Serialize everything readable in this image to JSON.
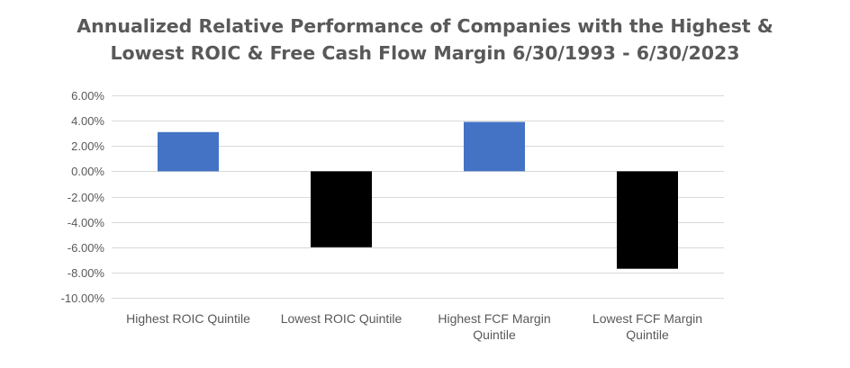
{
  "chart_data": {
    "type": "bar",
    "title_lines": [
      "Annualized Relative Performance of Companies with the Highest &",
      "Lowest ROIC & Free Cash Flow Margin 6/30/1993 - 6/30/2023"
    ],
    "categories": [
      [
        "Highest ROIC Quintile"
      ],
      [
        "Lowest ROIC Quintile"
      ],
      [
        "Highest FCF Margin",
        "Quintile"
      ],
      [
        "Lowest FCF Margin",
        "Quintile"
      ]
    ],
    "values": [
      3.1,
      -6.0,
      3.9,
      -7.7
    ],
    "value_format": "percent_2dp",
    "ylim": [
      -10,
      6
    ],
    "yticks": [
      6,
      4,
      2,
      0,
      -2,
      -4,
      -6,
      -8,
      -10
    ],
    "ytick_labels": [
      "6.00%",
      "4.00%",
      "2.00%",
      "0.00%",
      "-2.00%",
      "-4.00%",
      "-6.00%",
      "-8.00%",
      "-10.00%"
    ],
    "grid": true,
    "legend": "none",
    "colors": {
      "positive": "#4472C4",
      "negative": "#000000",
      "grid": "#D9D9D9",
      "text": "#595959"
    }
  }
}
